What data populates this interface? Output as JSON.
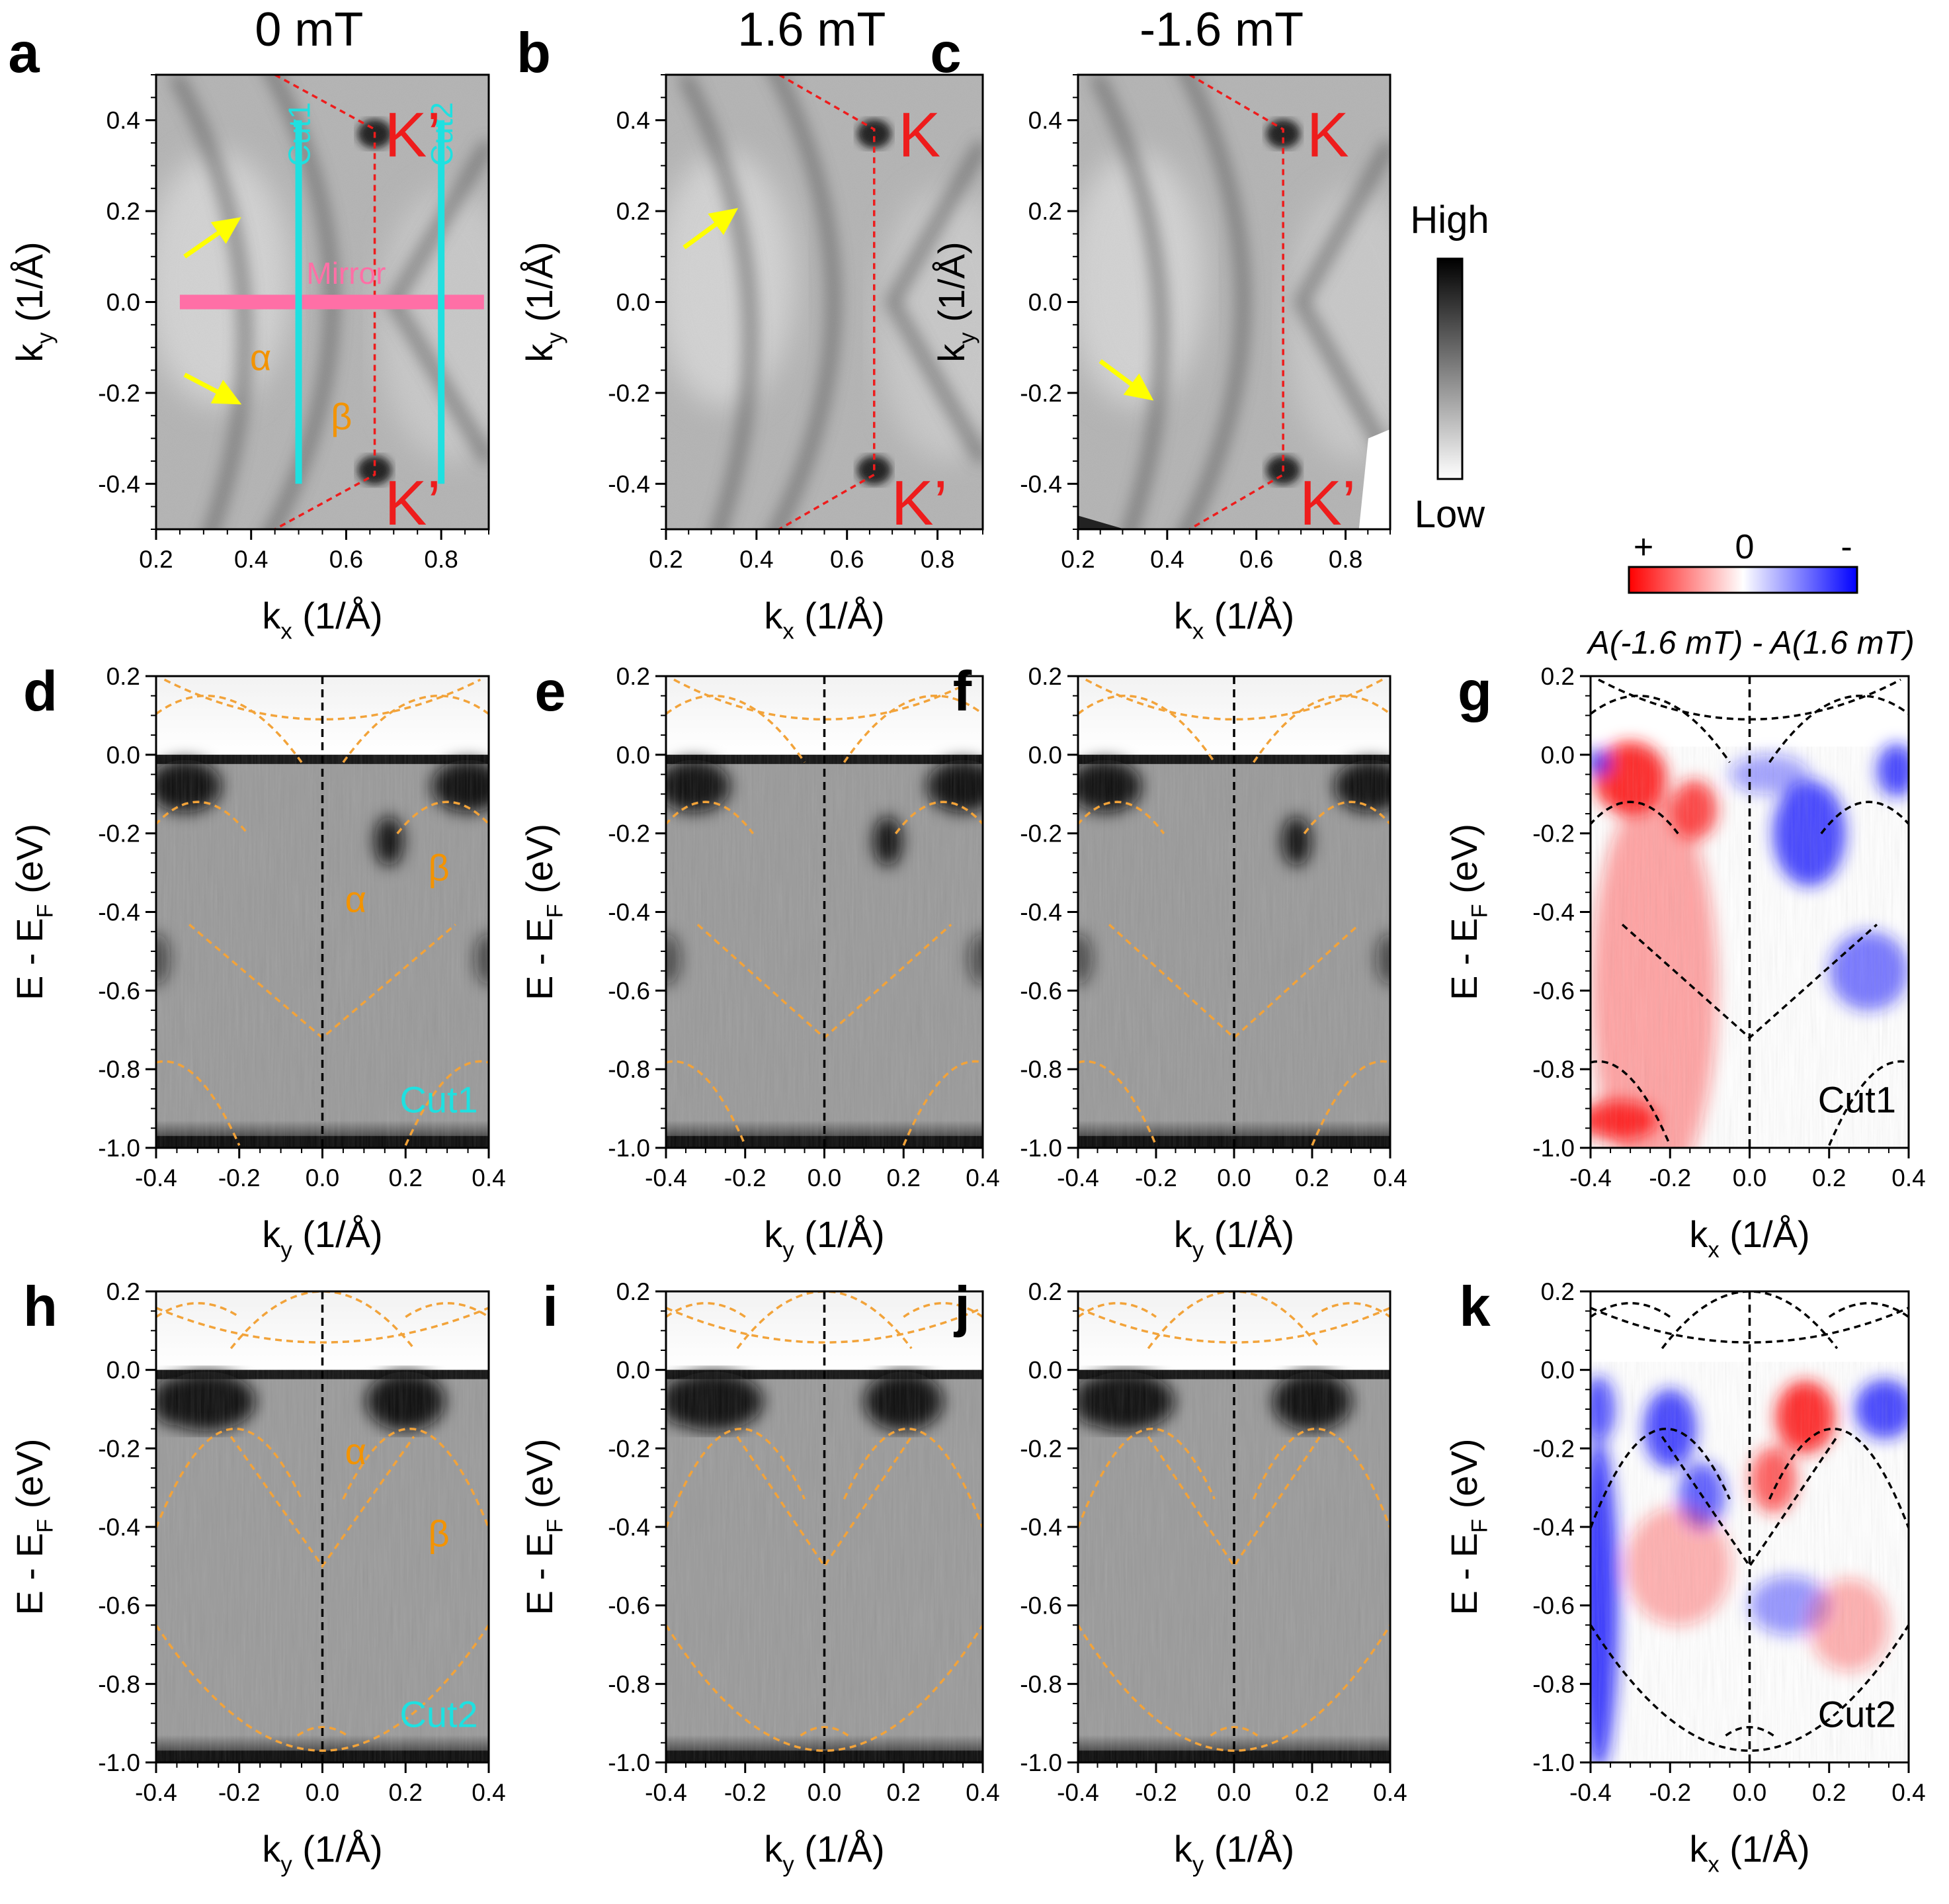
{
  "figure": {
    "colors": {
      "red": "#ee1c1c",
      "cyan": "#1fe0e0",
      "yellow": "#ffff00",
      "pink": "#ff6fa6",
      "orange": "#f39300",
      "band_orange": "#f2a33a",
      "black": "#000000",
      "diff_red": "#ff1a1a",
      "diff_blue": "#1a1aff"
    },
    "colorbar_gray": {
      "high": "High",
      "low": "Low"
    },
    "colorbar_diff": {
      "plus": "+",
      "zero": "0",
      "minus": "-",
      "title": "A(-1.6 mT) - A(1.6 mT)"
    },
    "panels": [
      {
        "letter": "a",
        "title": "0 mT",
        "kind": "map",
        "xlabel": "k",
        "xlabel_sub": "x",
        "xlabel_unit": " (1/Å)",
        "ylabel": "k",
        "ylabel_sub": "y",
        "ylabel_unit": " (1/Å)",
        "xticks": [
          "0.2",
          "0.4",
          "0.6",
          "0.8"
        ],
        "yticks": [
          "0.4",
          "0.2",
          "0.0",
          "-0.2",
          "-0.4"
        ],
        "labels": {
          "k_top": "K’",
          "k_bottom": "K’",
          "cut1": "Cut1",
          "cut2": "Cut2",
          "mirror": "Mirror",
          "alpha": "α",
          "beta": "β"
        }
      },
      {
        "letter": "b",
        "title": "1.6 mT",
        "kind": "map",
        "xlabel": "k",
        "xlabel_sub": "x",
        "xlabel_unit": " (1/Å)",
        "ylabel": "k",
        "ylabel_sub": "y",
        "ylabel_unit": " (1/Å)",
        "xticks": [
          "0.2",
          "0.4",
          "0.6",
          "0.8"
        ],
        "yticks": [
          "0.4",
          "0.2",
          "0.0",
          "-0.2",
          "-0.4"
        ],
        "labels": {
          "k_top": "K",
          "k_bottom": "K’"
        }
      },
      {
        "letter": "c",
        "title": "-1.6 mT",
        "kind": "map",
        "xlabel": "k",
        "xlabel_sub": "x",
        "xlabel_unit": " (1/Å)",
        "ylabel": "k",
        "ylabel_sub": "y",
        "ylabel_unit": " (1/Å)",
        "xticks": [
          "0.2",
          "0.4",
          "0.6",
          "0.8"
        ],
        "yticks": [
          "0.4",
          "0.2",
          "0.0",
          "-0.2",
          "-0.4"
        ],
        "labels": {
          "k_top": "K",
          "k_bottom": "K’"
        }
      },
      {
        "letter": "d",
        "kind": "cut",
        "cut": 1,
        "xlabel": "k",
        "xlabel_sub": "y",
        "xlabel_unit": " (1/Å)",
        "ylabel": "E - E",
        "ylabel_sub": "F",
        "ylabel_unit": " (eV)",
        "xticks": [
          "-0.4",
          "-0.2",
          "0.0",
          "0.2",
          "0.4"
        ],
        "yticks": [
          "0.2",
          "0.0",
          "-0.2",
          "-0.4",
          "-0.6",
          "-0.8",
          "-1.0"
        ],
        "labels": {
          "cutname": "Cut1",
          "alpha": "α",
          "beta": "β"
        }
      },
      {
        "letter": "e",
        "kind": "cut",
        "cut": 1,
        "xlabel": "k",
        "xlabel_sub": "y",
        "xlabel_unit": " (1/Å)",
        "ylabel": "E - E",
        "ylabel_sub": "F",
        "ylabel_unit": " (eV)",
        "xticks": [
          "-0.4",
          "-0.2",
          "0.0",
          "0.2",
          "0.4"
        ],
        "yticks": [
          "0.2",
          "0.0",
          "-0.2",
          "-0.4",
          "-0.6",
          "-0.8",
          "-1.0"
        ]
      },
      {
        "letter": "f",
        "kind": "cut",
        "cut": 1,
        "xlabel": "k",
        "xlabel_sub": "y",
        "xlabel_unit": " (1/Å)",
        "ylabel": "",
        "ylabel_sub": "",
        "ylabel_unit": "",
        "xticks": [
          "-0.4",
          "-0.2",
          "0.0",
          "0.2",
          "0.4"
        ],
        "yticks": [
          "0.2",
          "0.0",
          "-0.2",
          "-0.4",
          "-0.6",
          "-0.8",
          "-1.0"
        ]
      },
      {
        "letter": "g",
        "kind": "diff",
        "cut": 1,
        "xlabel": "k",
        "xlabel_sub": "x",
        "xlabel_unit": " (1/Å)",
        "ylabel": "E - E",
        "ylabel_sub": "F",
        "ylabel_unit": " (eV)",
        "xticks": [
          "-0.4",
          "-0.2",
          "0.0",
          "0.2",
          "0.4"
        ],
        "yticks": [
          "0.2",
          "0.0",
          "-0.2",
          "-0.4",
          "-0.6",
          "-0.8",
          "-1.0"
        ],
        "labels": {
          "cutname": "Cut1"
        }
      },
      {
        "letter": "h",
        "kind": "cut",
        "cut": 2,
        "xlabel": "k",
        "xlabel_sub": "y",
        "xlabel_unit": " (1/Å)",
        "ylabel": "E - E",
        "ylabel_sub": "F",
        "ylabel_unit": " (eV)",
        "xticks": [
          "-0.4",
          "-0.2",
          "0.0",
          "0.2",
          "0.4"
        ],
        "yticks": [
          "0.2",
          "0.0",
          "-0.2",
          "-0.4",
          "-0.6",
          "-0.8",
          "-1.0"
        ],
        "labels": {
          "cutname": "Cut2",
          "alpha": "α",
          "beta": "β"
        }
      },
      {
        "letter": "i",
        "kind": "cut",
        "cut": 2,
        "xlabel": "k",
        "xlabel_sub": "y",
        "xlabel_unit": " (1/Å)",
        "ylabel": "E - E",
        "ylabel_sub": "F",
        "ylabel_unit": " (eV)",
        "xticks": [
          "-0.4",
          "-0.2",
          "0.0",
          "0.2",
          "0.4"
        ],
        "yticks": [
          "0.2",
          "0.0",
          "-0.2",
          "-0.4",
          "-0.6",
          "-0.8",
          "-1.0"
        ]
      },
      {
        "letter": "j",
        "kind": "cut",
        "cut": 2,
        "xlabel": "k",
        "xlabel_sub": "y",
        "xlabel_unit": " (1/Å)",
        "ylabel": "",
        "ylabel_sub": "",
        "ylabel_unit": "",
        "xticks": [
          "-0.4",
          "-0.2",
          "0.0",
          "0.2",
          "0.4"
        ],
        "yticks": [
          "0.2",
          "0.0",
          "-0.2",
          "-0.4",
          "-0.6",
          "-0.8",
          "-1.0"
        ]
      },
      {
        "letter": "k",
        "kind": "diff",
        "cut": 2,
        "xlabel": "k",
        "xlabel_sub": "x",
        "xlabel_unit": " (1/Å)",
        "ylabel": "E - E",
        "ylabel_sub": "F",
        "ylabel_unit": " (eV)",
        "xticks": [
          "-0.4",
          "-0.2",
          "0.0",
          "0.2",
          "0.4"
        ],
        "yticks": [
          "0.2",
          "0.0",
          "-0.2",
          "-0.4",
          "-0.6",
          "-0.8",
          "-1.0"
        ],
        "labels": {
          "cutname": "Cut2"
        }
      }
    ]
  }
}
